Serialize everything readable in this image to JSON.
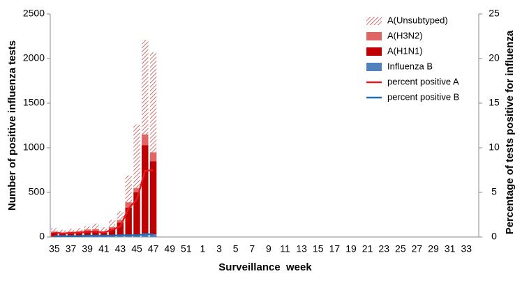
{
  "chart_data": {
    "type": "bar",
    "x_label": "Surveillance  week",
    "y_label": "Number of positive influenza tests",
    "y2_label": "Percentage of tests positive for influenza",
    "categories": [
      "35",
      null,
      "37",
      null,
      "39",
      null,
      "41",
      null,
      "43",
      null,
      "45",
      null,
      "47",
      null,
      "49",
      null,
      "51",
      null,
      "1",
      null,
      "3",
      null,
      "5",
      null,
      "7",
      null,
      "9",
      null,
      "11",
      null,
      "13",
      null,
      "15",
      null,
      "17",
      null,
      "19",
      null,
      "21",
      null,
      "23",
      null,
      "25",
      null,
      "27",
      null,
      "29",
      null,
      "31",
      null,
      "33",
      null
    ],
    "ylim": [
      0,
      2500
    ],
    "yticks": [
      0,
      500,
      1000,
      1500,
      2000,
      2500
    ],
    "y2lim": [
      0,
      25
    ],
    "y2ticks": [
      0,
      5,
      10,
      15,
      20,
      25
    ],
    "stacked": true,
    "series": [
      {
        "name": "A(Unsubtyped)",
        "type": "bar",
        "pattern": "hatch",
        "color": "#c0504d",
        "values": [
          40,
          30,
          35,
          35,
          35,
          60,
          45,
          80,
          100,
          300,
          710,
          1060,
          1120,
          null,
          null,
          null,
          null,
          null,
          null,
          null,
          null,
          null,
          null,
          null,
          null,
          null,
          null,
          null,
          null,
          null,
          null,
          null,
          null,
          null,
          null,
          null,
          null,
          null,
          null,
          null,
          null,
          null,
          null,
          null,
          null,
          null,
          null,
          null,
          null,
          null,
          null,
          null
        ]
      },
      {
        "name": "A(H3N2)",
        "type": "bar",
        "color": "#e06666",
        "values": [
          10,
          10,
          10,
          10,
          15,
          20,
          15,
          20,
          30,
          60,
          50,
          120,
          100,
          null,
          null,
          null,
          null,
          null,
          null,
          null,
          null,
          null,
          null,
          null,
          null,
          null,
          null,
          null,
          null,
          null,
          null,
          null,
          null,
          null,
          null,
          null,
          null,
          null,
          null,
          null,
          null,
          null,
          null,
          null,
          null,
          null,
          null,
          null,
          null,
          null,
          null,
          null
        ]
      },
      {
        "name": "A(H1N1)",
        "type": "bar",
        "color": "#c00000",
        "values": [
          45,
          35,
          45,
          50,
          60,
          60,
          40,
          80,
          150,
          315,
          480,
          990,
          820,
          null,
          null,
          null,
          null,
          null,
          null,
          null,
          null,
          null,
          null,
          null,
          null,
          null,
          null,
          null,
          null,
          null,
          null,
          null,
          null,
          null,
          null,
          null,
          null,
          null,
          null,
          null,
          null,
          null,
          null,
          null,
          null,
          null,
          null,
          null,
          null,
          null,
          null,
          null
        ]
      },
      {
        "name": "Influenza B",
        "type": "bar",
        "color": "#4f81bd",
        "values": [
          5,
          5,
          5,
          5,
          10,
          10,
          10,
          10,
          10,
          15,
          20,
          40,
          30,
          null,
          null,
          null,
          null,
          null,
          null,
          null,
          null,
          null,
          null,
          null,
          null,
          null,
          null,
          null,
          null,
          null,
          null,
          null,
          null,
          null,
          null,
          null,
          null,
          null,
          null,
          null,
          null,
          null,
          null,
          null,
          null,
          null,
          null,
          null,
          null,
          null,
          null,
          null
        ]
      },
      {
        "name": "percent positive A",
        "type": "line",
        "axis": "y2",
        "color": "#e41a1c",
        "values": [
          0.5,
          0.4,
          0.45,
          0.5,
          0.6,
          0.6,
          0.5,
          0.8,
          1.2,
          3.2,
          4.2,
          7.4,
          7.5,
          null,
          null,
          null,
          null,
          null,
          null,
          null,
          null,
          null,
          null,
          null,
          null,
          null,
          null,
          null,
          null,
          null,
          null,
          null,
          null,
          null,
          null,
          null,
          null,
          null,
          null,
          null,
          null,
          null,
          null,
          null,
          null,
          null,
          null,
          null,
          null,
          null,
          null,
          null
        ]
      },
      {
        "name": "percent positive B",
        "type": "line",
        "axis": "y2",
        "color": "#1f6fb5",
        "values": [
          0.1,
          0.1,
          0.1,
          0.1,
          0.15,
          0.15,
          0.15,
          0.15,
          0.2,
          0.2,
          0.2,
          0.3,
          0.3,
          null,
          null,
          null,
          null,
          null,
          null,
          null,
          null,
          null,
          null,
          null,
          null,
          null,
          null,
          null,
          null,
          null,
          null,
          null,
          null,
          null,
          null,
          null,
          null,
          null,
          null,
          null,
          null,
          null,
          null,
          null,
          null,
          null,
          null,
          null,
          null,
          null,
          null,
          null
        ]
      }
    ]
  }
}
